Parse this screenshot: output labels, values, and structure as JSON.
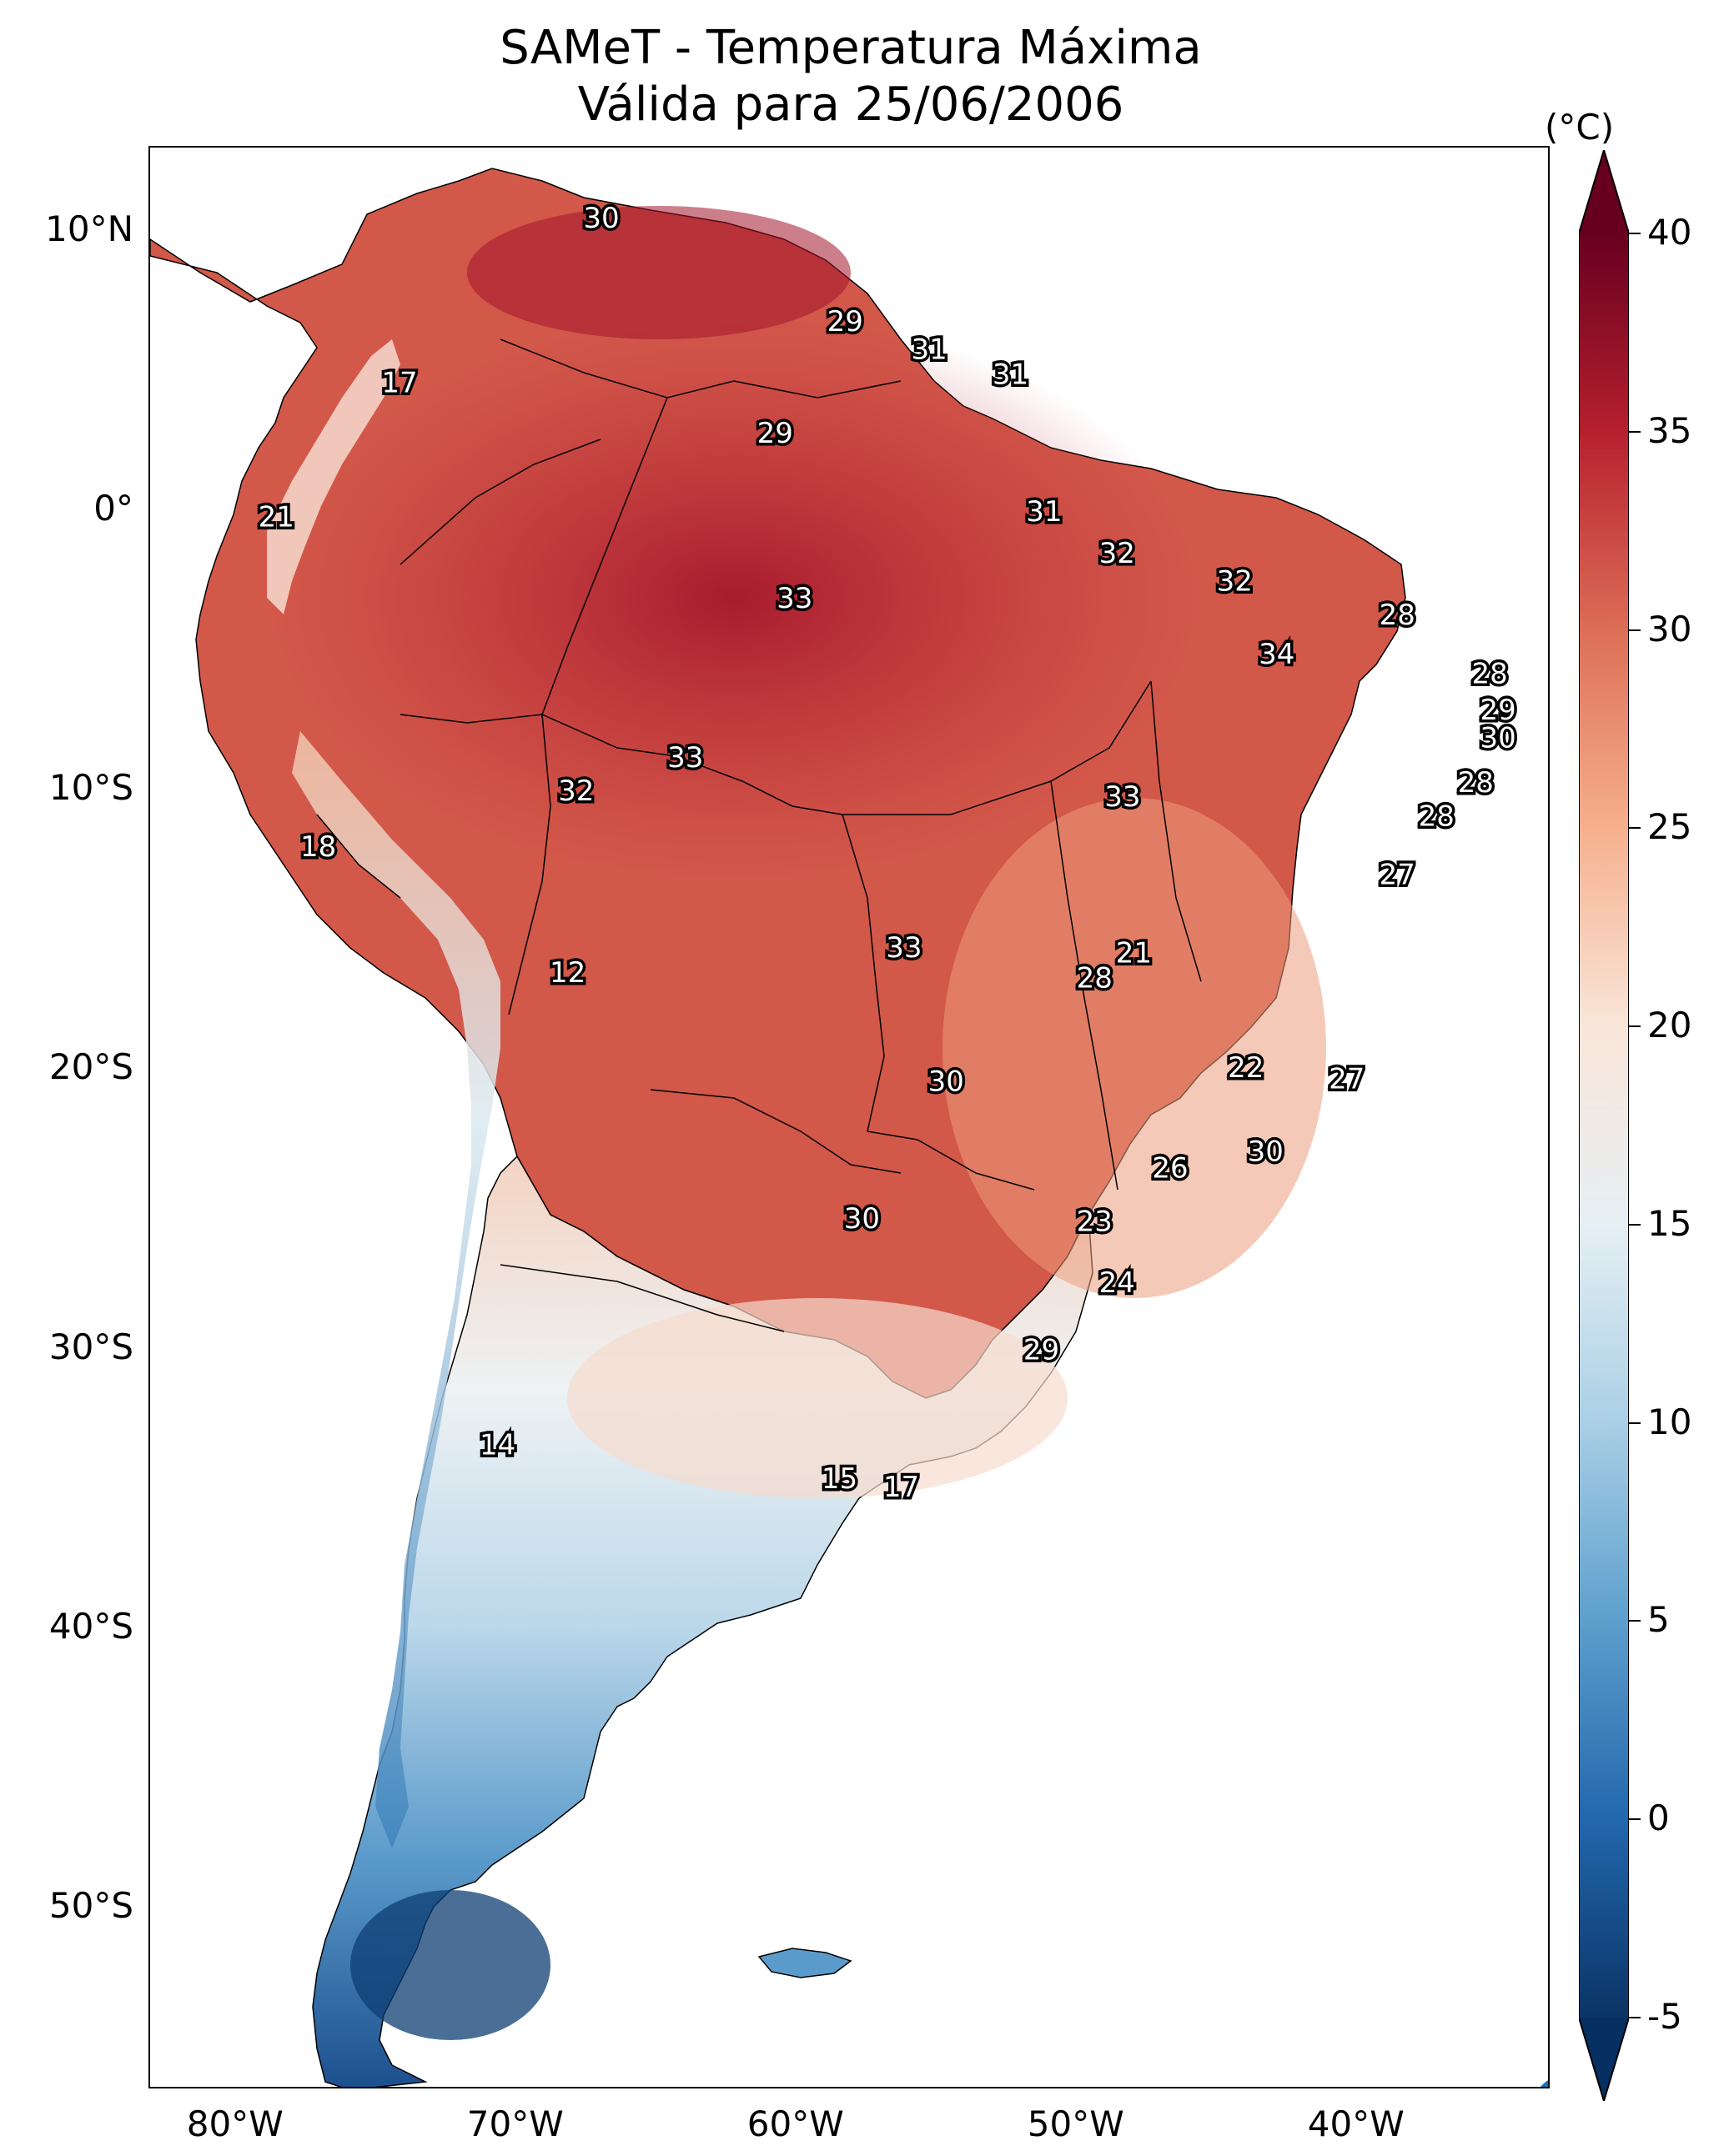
{
  "title": {
    "line1": "SAMeT - Temperatura Máxima",
    "line2": "Válida para 25/06/2006"
  },
  "map": {
    "extent": {
      "lon_min": -83.0,
      "lon_max": -33.0,
      "lat_min": -56.5,
      "lat_max": 13.0
    },
    "lon_ticks": [
      {
        "value": -80,
        "label": "80°W"
      },
      {
        "value": -70,
        "label": "70°W"
      },
      {
        "value": -60,
        "label": "60°W"
      },
      {
        "value": -50,
        "label": "50°W"
      },
      {
        "value": -40,
        "label": "40°W"
      }
    ],
    "lat_ticks": [
      {
        "value": 10,
        "label": "10°N"
      },
      {
        "value": 0,
        "label": "0°"
      },
      {
        "value": -10,
        "label": "10°S"
      },
      {
        "value": -20,
        "label": "20°S"
      },
      {
        "value": -30,
        "label": "30°S"
      },
      {
        "value": -40,
        "label": "40°S"
      },
      {
        "value": -50,
        "label": "50°S"
      }
    ]
  },
  "colorbar": {
    "unit": "(°C)",
    "min": -5,
    "max": 40,
    "ticks": [
      {
        "value": 40,
        "label": "40"
      },
      {
        "value": 35,
        "label": "35"
      },
      {
        "value": 30,
        "label": "30"
      },
      {
        "value": 25,
        "label": "25"
      },
      {
        "value": 20,
        "label": "20"
      },
      {
        "value": 15,
        "label": "15"
      },
      {
        "value": 10,
        "label": "10"
      },
      {
        "value": 5,
        "label": "5"
      },
      {
        "value": 0,
        "label": "0"
      },
      {
        "value": -5,
        "label": "-5"
      }
    ],
    "colors": [
      "#0b3466",
      "#2267ad",
      "#5d9fcd",
      "#a9cfe5",
      "#e6eff4",
      "#f9e6d9",
      "#f6b08e",
      "#dc6e57",
      "#b6202e",
      "#67001f"
    ]
  },
  "city_temps": [
    {
      "lon": -66.9,
      "lat": 10.5,
      "value": "30"
    },
    {
      "lon": -58.2,
      "lat": 6.8,
      "value": "29"
    },
    {
      "lon": -55.2,
      "lat": 5.8,
      "value": "31"
    },
    {
      "lon": -52.3,
      "lat": 4.9,
      "value": "31"
    },
    {
      "lon": -74.1,
      "lat": 4.6,
      "value": "17"
    },
    {
      "lon": -60.7,
      "lat": 2.8,
      "value": "29"
    },
    {
      "lon": -78.5,
      "lat": -0.2,
      "value": "21"
    },
    {
      "lon": -51.1,
      "lat": 0.0,
      "value": "31"
    },
    {
      "lon": -48.5,
      "lat": -1.5,
      "value": "32"
    },
    {
      "lon": -44.3,
      "lat": -2.5,
      "value": "32"
    },
    {
      "lon": -60.0,
      "lat": -3.1,
      "value": "33"
    },
    {
      "lon": -38.5,
      "lat": -3.7,
      "value": "28"
    },
    {
      "lon": -42.8,
      "lat": -5.1,
      "value": "34"
    },
    {
      "lon": -35.2,
      "lat": -5.8,
      "value": "28"
    },
    {
      "lon": -34.9,
      "lat": -7.1,
      "value": "29"
    },
    {
      "lon": -34.9,
      "lat": -8.1,
      "value": "30"
    },
    {
      "lon": -63.9,
      "lat": -8.8,
      "value": "33"
    },
    {
      "lon": -35.7,
      "lat": -9.7,
      "value": "28"
    },
    {
      "lon": -67.8,
      "lat": -10.0,
      "value": "32"
    },
    {
      "lon": -48.3,
      "lat": -10.2,
      "value": "33"
    },
    {
      "lon": -37.1,
      "lat": -10.9,
      "value": "28"
    },
    {
      "lon": -77.0,
      "lat": -12.0,
      "value": "18"
    },
    {
      "lon": -38.5,
      "lat": -13.0,
      "value": "27"
    },
    {
      "lon": -56.1,
      "lat": -15.6,
      "value": "33"
    },
    {
      "lon": -47.9,
      "lat": -15.8,
      "value": "21"
    },
    {
      "lon": -49.3,
      "lat": -16.7,
      "value": "28"
    },
    {
      "lon": -68.1,
      "lat": -16.5,
      "value": "12"
    },
    {
      "lon": -43.9,
      "lat": -19.9,
      "value": "22"
    },
    {
      "lon": -40.3,
      "lat": -20.3,
      "value": "27"
    },
    {
      "lon": -54.6,
      "lat": -20.4,
      "value": "30"
    },
    {
      "lon": -43.2,
      "lat": -22.9,
      "value": "30"
    },
    {
      "lon": -46.6,
      "lat": -23.5,
      "value": "26"
    },
    {
      "lon": -57.6,
      "lat": -25.3,
      "value": "30"
    },
    {
      "lon": -49.3,
      "lat": -25.4,
      "value": "23"
    },
    {
      "lon": -48.5,
      "lat": -27.6,
      "value": "24"
    },
    {
      "lon": -51.2,
      "lat": -30.0,
      "value": "29"
    },
    {
      "lon": -70.6,
      "lat": -33.4,
      "value": "14"
    },
    {
      "lon": -58.4,
      "lat": -34.6,
      "value": "15"
    },
    {
      "lon": -56.2,
      "lat": -34.9,
      "value": "17"
    }
  ]
}
